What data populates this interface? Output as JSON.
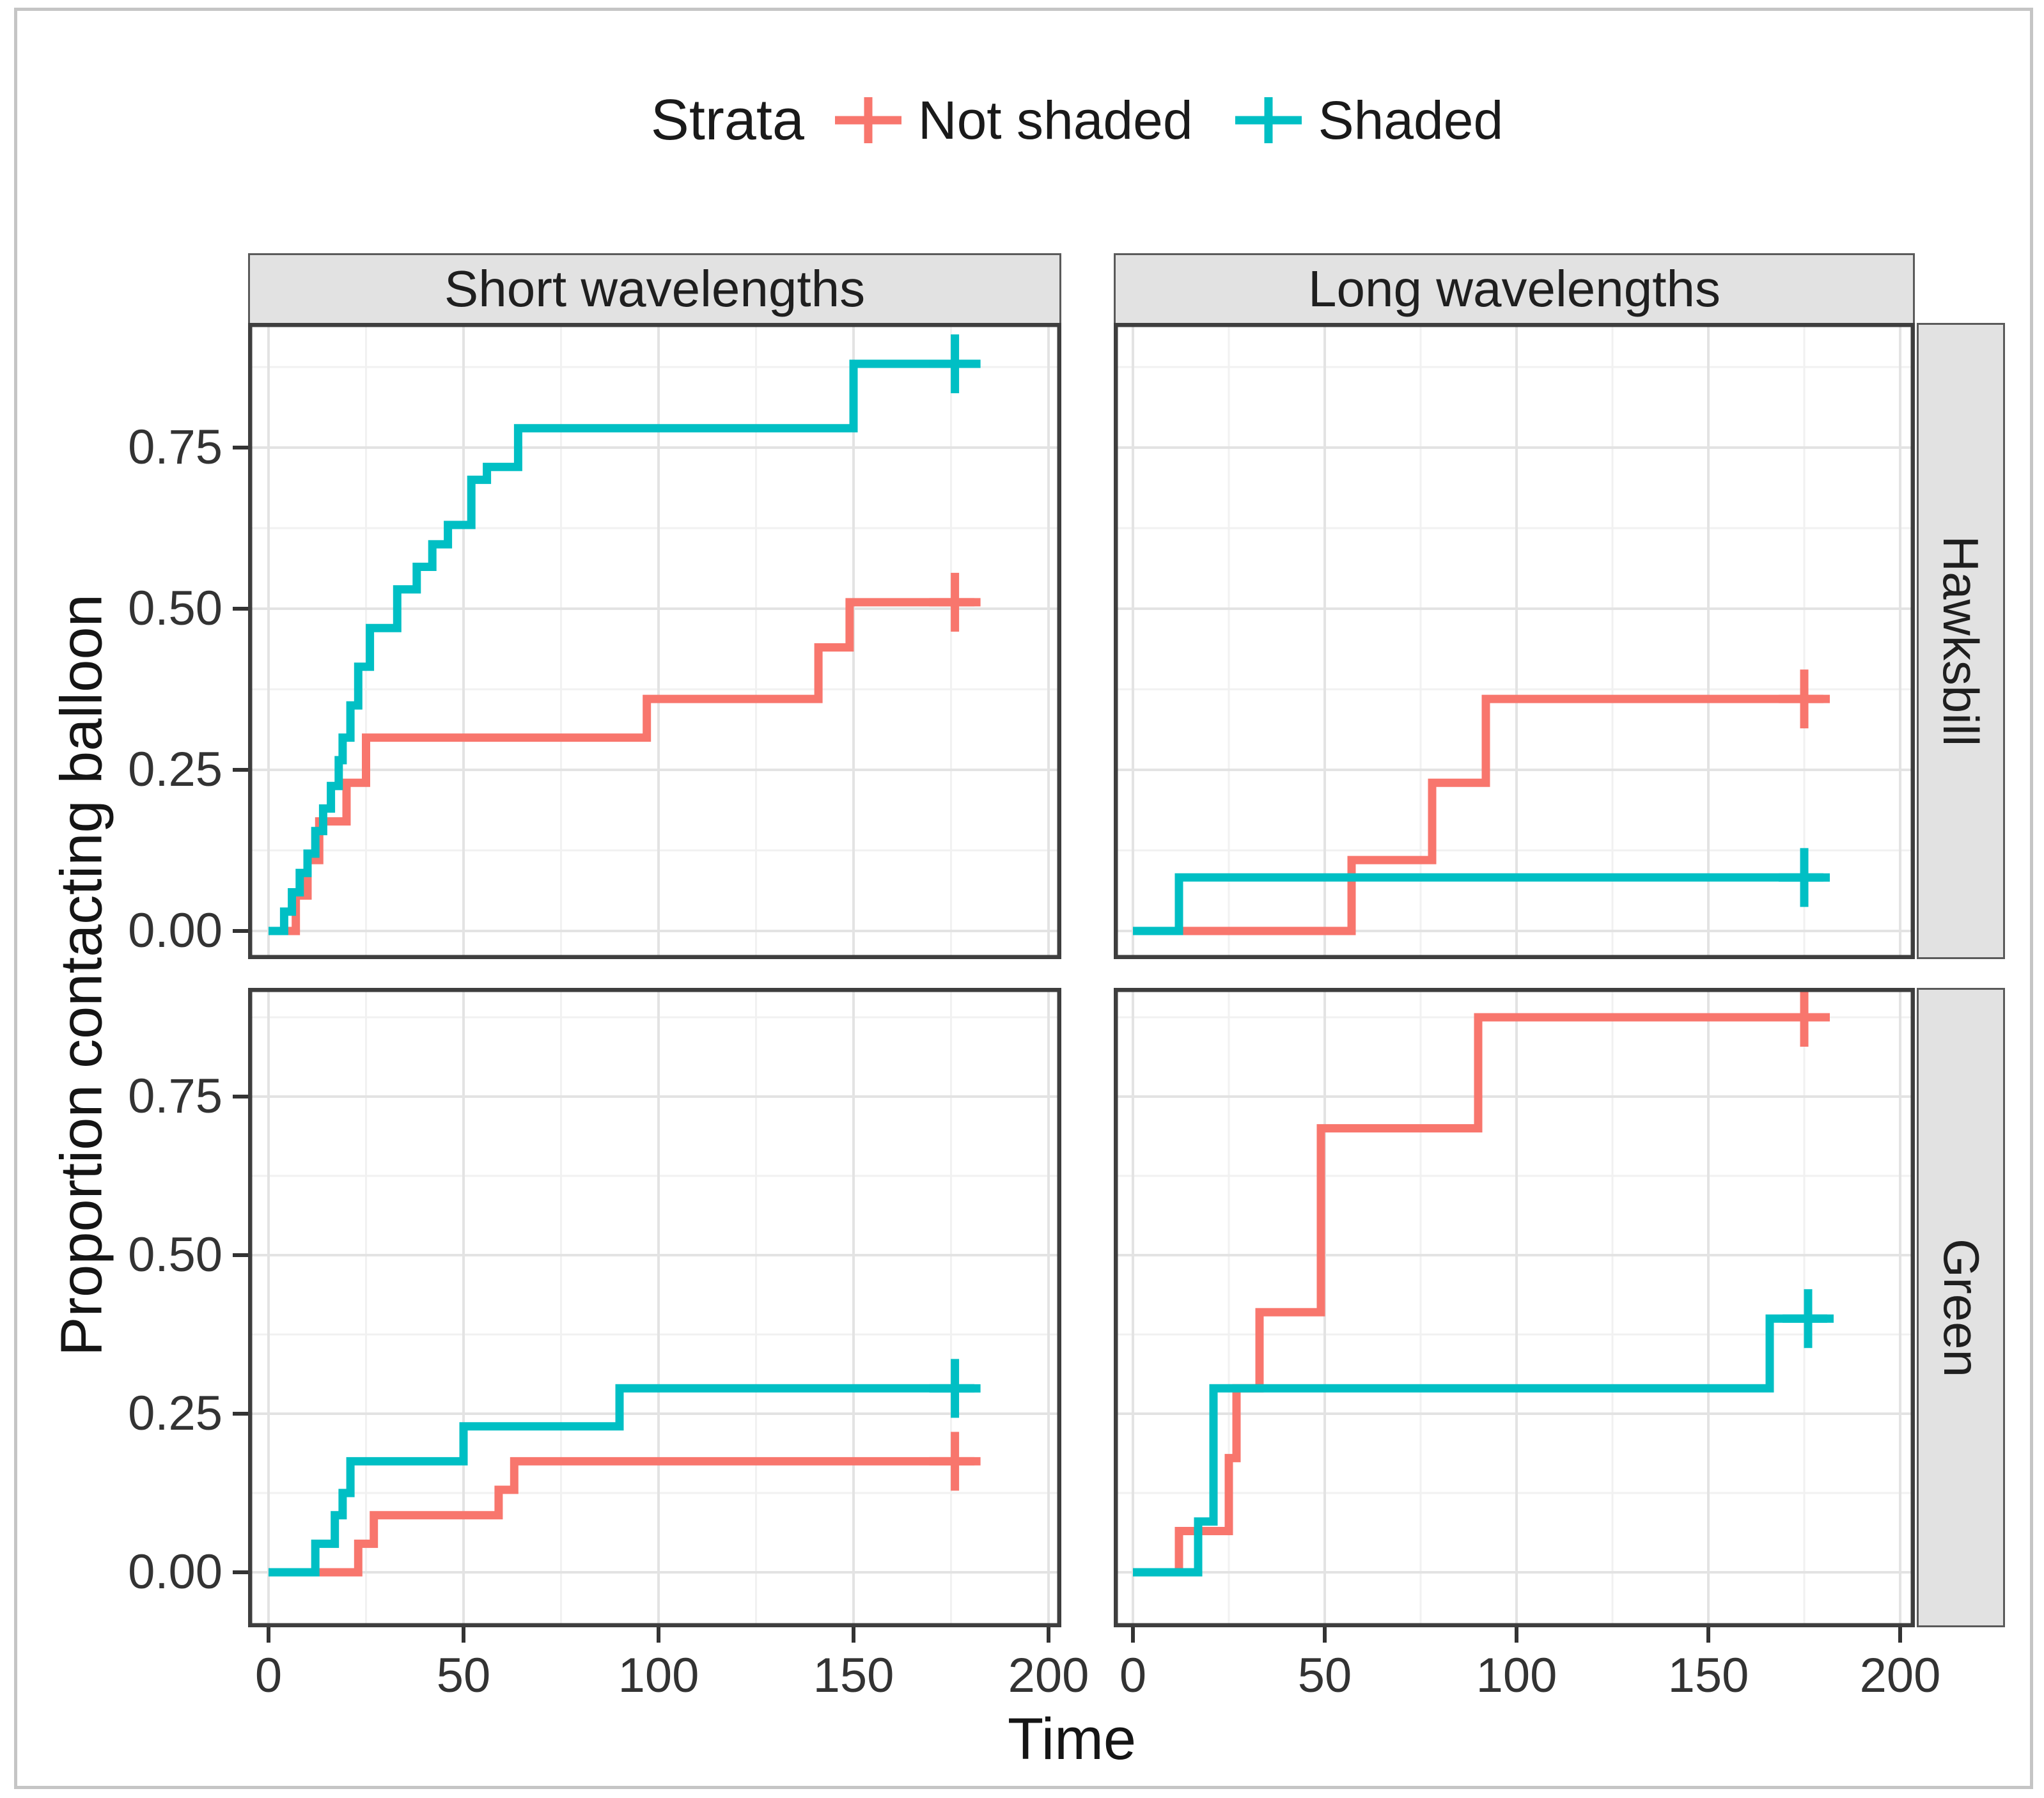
{
  "figure": {
    "legend": {
      "title": "Strata",
      "items": [
        {
          "label": "Not shaded",
          "color": "#F8766D"
        },
        {
          "label": "Shaded",
          "color": "#00BFC4"
        }
      ]
    },
    "facets": {
      "columns": [
        "Short wavelengths",
        "Long wavelengths"
      ],
      "rows": [
        "Hawksbill",
        "Green"
      ]
    },
    "x_axis_title": "Time",
    "y_axis_title": "Proportion contacting balloon"
  },
  "chart_data": {
    "type": "line",
    "subtype": "kaplan-meier-step",
    "title": "",
    "xlabel": "Time",
    "ylabel": "Proportion contacting balloon",
    "legend_position": "top",
    "grid": "on",
    "x_ticks": [
      {
        "label": "0",
        "value": 0
      },
      {
        "label": "50",
        "value": 50
      },
      {
        "label": "100",
        "value": 100
      },
      {
        "label": "150",
        "value": 150
      },
      {
        "label": "200",
        "value": 200
      }
    ],
    "y_ticks": [
      {
        "label": "0.00",
        "value": 0
      },
      {
        "label": "0.25",
        "value": 0.25
      },
      {
        "label": "0.50",
        "value": 0.5
      },
      {
        "label": "0.75",
        "value": 0.75
      }
    ],
    "x_minor": [
      25,
      75,
      125,
      175
    ],
    "y_minor": [
      0.125,
      0.375,
      0.625,
      0.875
    ],
    "xlim": [
      0,
      200
    ],
    "ylim": [
      0,
      0.93
    ],
    "series_colors": {
      "Not shaded": "#F8766D",
      "Shaded": "#00BFC4"
    },
    "panels": [
      {
        "row": "Hawksbill",
        "col": "Short wavelengths",
        "series": [
          {
            "name": "Not shaded",
            "color": "#F8766D",
            "steps": [
              [
                0,
                0
              ],
              [
                7,
                0.055
              ],
              [
                10,
                0.11
              ],
              [
                13,
                0.17
              ],
              [
                20,
                0.23
              ],
              [
                25,
                0.3
              ],
              [
                97,
                0.36
              ],
              [
                141,
                0.44
              ],
              [
                149,
                0.51
              ]
            ],
            "censor_times": [
              176
            ],
            "end_time": 181
          },
          {
            "name": "Shaded",
            "color": "#00BFC4",
            "steps": [
              [
                0,
                0
              ],
              [
                4,
                0.03
              ],
              [
                6,
                0.06
              ],
              [
                8,
                0.09
              ],
              [
                10,
                0.12
              ],
              [
                12,
                0.155
              ],
              [
                14,
                0.19
              ],
              [
                16,
                0.225
              ],
              [
                18,
                0.265
              ],
              [
                19,
                0.3
              ],
              [
                21,
                0.35
              ],
              [
                23,
                0.41
              ],
              [
                26,
                0.47
              ],
              [
                33,
                0.53
              ],
              [
                38,
                0.565
              ],
              [
                42,
                0.6
              ],
              [
                46,
                0.63
              ],
              [
                52,
                0.7
              ],
              [
                56,
                0.72
              ],
              [
                64,
                0.78
              ],
              [
                150,
                0.88
              ]
            ],
            "censor_times": [
              176
            ],
            "end_time": 181
          }
        ]
      },
      {
        "row": "Hawksbill",
        "col": "Long wavelengths",
        "series": [
          {
            "name": "Not shaded",
            "color": "#F8766D",
            "steps": [
              [
                0,
                0
              ],
              [
                57,
                0.11
              ],
              [
                78,
                0.23
              ],
              [
                92,
                0.36
              ]
            ],
            "censor_times": [
              175
            ],
            "end_time": 180
          },
          {
            "name": "Shaded",
            "color": "#00BFC4",
            "steps": [
              [
                0,
                0
              ],
              [
                12,
                0.083
              ]
            ],
            "censor_times": [
              175
            ],
            "end_time": 180
          }
        ]
      },
      {
        "row": "Green",
        "col": "Short wavelengths",
        "series": [
          {
            "name": "Not shaded",
            "color": "#F8766D",
            "steps": [
              [
                0,
                0
              ],
              [
                23,
                0.045
              ],
              [
                27,
                0.09
              ],
              [
                59,
                0.13
              ],
              [
                63,
                0.175
              ]
            ],
            "censor_times": [
              176
            ],
            "end_time": 181
          },
          {
            "name": "Shaded",
            "color": "#00BFC4",
            "steps": [
              [
                0,
                0
              ],
              [
                12,
                0.045
              ],
              [
                17,
                0.09
              ],
              [
                19,
                0.125
              ],
              [
                21,
                0.175
              ],
              [
                50,
                0.23
              ],
              [
                90,
                0.29
              ]
            ],
            "censor_times": [
              176
            ],
            "end_time": 181
          }
        ]
      },
      {
        "row": "Green",
        "col": "Long wavelengths",
        "series": [
          {
            "name": "Not shaded",
            "color": "#F8766D",
            "steps": [
              [
                0,
                0
              ],
              [
                12,
                0.065
              ],
              [
                25,
                0.18
              ],
              [
                27,
                0.29
              ],
              [
                33,
                0.41
              ],
              [
                49,
                0.7
              ],
              [
                90,
                0.875
              ]
            ],
            "censor_times": [
              175
            ],
            "end_time": 181
          },
          {
            "name": "Shaded",
            "color": "#00BFC4",
            "steps": [
              [
                0,
                0
              ],
              [
                17,
                0.08
              ],
              [
                21,
                0.29
              ],
              [
                166,
                0.4
              ]
            ],
            "censor_times": [
              176
            ],
            "end_time": 181
          }
        ]
      }
    ]
  }
}
